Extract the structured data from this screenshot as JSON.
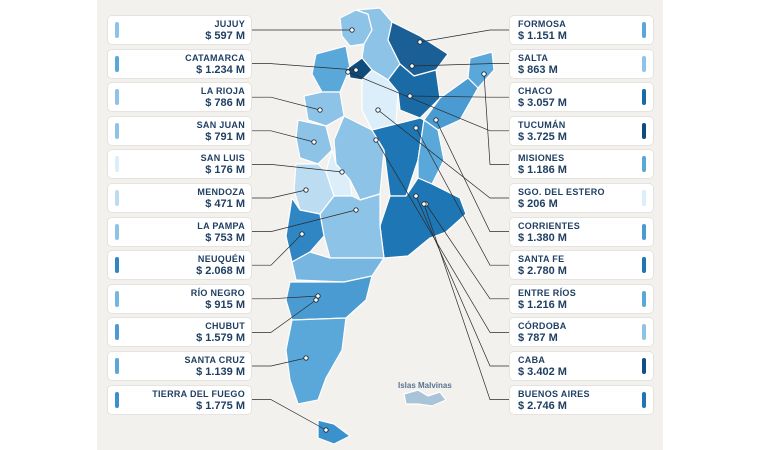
{
  "provinces_left": [
    {
      "name": "JUJUY",
      "value": "$ 597 M",
      "color": "#8ec3e8"
    },
    {
      "name": "CATAMARCA",
      "value": "$ 1.234 M",
      "color": "#5aa7da"
    },
    {
      "name": "LA RIOJA",
      "value": "$ 786 M",
      "color": "#8ec3e8"
    },
    {
      "name": "SAN JUAN",
      "value": "$ 791 M",
      "color": "#8ec3e8"
    },
    {
      "name": "SAN LUIS",
      "value": "$ 176 M",
      "color": "#dbeef9"
    },
    {
      "name": "MENDOZA",
      "value": "$ 471 M",
      "color": "#bcdcf2"
    },
    {
      "name": "LA PAMPA",
      "value": "$ 753 M",
      "color": "#8ec3e8"
    },
    {
      "name": "NEUQUÉN",
      "value": "$ 2.068 M",
      "color": "#2f86c3"
    },
    {
      "name": "RÍO NEGRO",
      "value": "$ 915 M",
      "color": "#78b6e2"
    },
    {
      "name": "CHUBUT",
      "value": "$ 1.579 M",
      "color": "#4a9bd2"
    },
    {
      "name": "SANTA CRUZ",
      "value": "$ 1.139 M",
      "color": "#5aa7da"
    },
    {
      "name": "TIERRA DEL FUEGO",
      "value": "$ 1.775 M",
      "color": "#3b91cc"
    }
  ],
  "provinces_right": [
    {
      "name": "FORMOSA",
      "value": "$ 1.151 M",
      "color": "#5aa7da"
    },
    {
      "name": "SALTA",
      "value": "$ 863 M",
      "color": "#8ec3e8"
    },
    {
      "name": "CHACO",
      "value": "$ 3.057 M",
      "color": "#1a6aa6"
    },
    {
      "name": "TUCUMÁN",
      "value": "$ 3.725 M",
      "color": "#0f4c7d"
    },
    {
      "name": "MISIONES",
      "value": "$ 1.186 M",
      "color": "#5aa7da"
    },
    {
      "name": "SGO. DEL ESTERO",
      "value": "$ 206 M",
      "color": "#dbeef9"
    },
    {
      "name": "CORRIENTES",
      "value": "$ 1.380 M",
      "color": "#4a9bd2"
    },
    {
      "name": "SANTA FE",
      "value": "$ 2.780 M",
      "color": "#1f76b4"
    },
    {
      "name": "ENTRE RÍOS",
      "value": "$ 1.216 M",
      "color": "#5aa7da"
    },
    {
      "name": "CÓRDOBA",
      "value": "$ 787 M",
      "color": "#8ec3e8"
    },
    {
      "name": "CABA",
      "value": "$ 3.402 M",
      "color": "#134f85"
    },
    {
      "name": "BUENOS AIRES",
      "value": "$ 2.746 M",
      "color": "#1f76b4"
    }
  ],
  "malvinas_label": "Islas Malvinas",
  "colors": {
    "background": "#f3f1ee",
    "text": "#1f3f63",
    "leader_line": "#2b2b2b",
    "map_dark": "#1a5f96",
    "map_mid": "#5aa7da",
    "map_light": "#a9d2ee"
  }
}
